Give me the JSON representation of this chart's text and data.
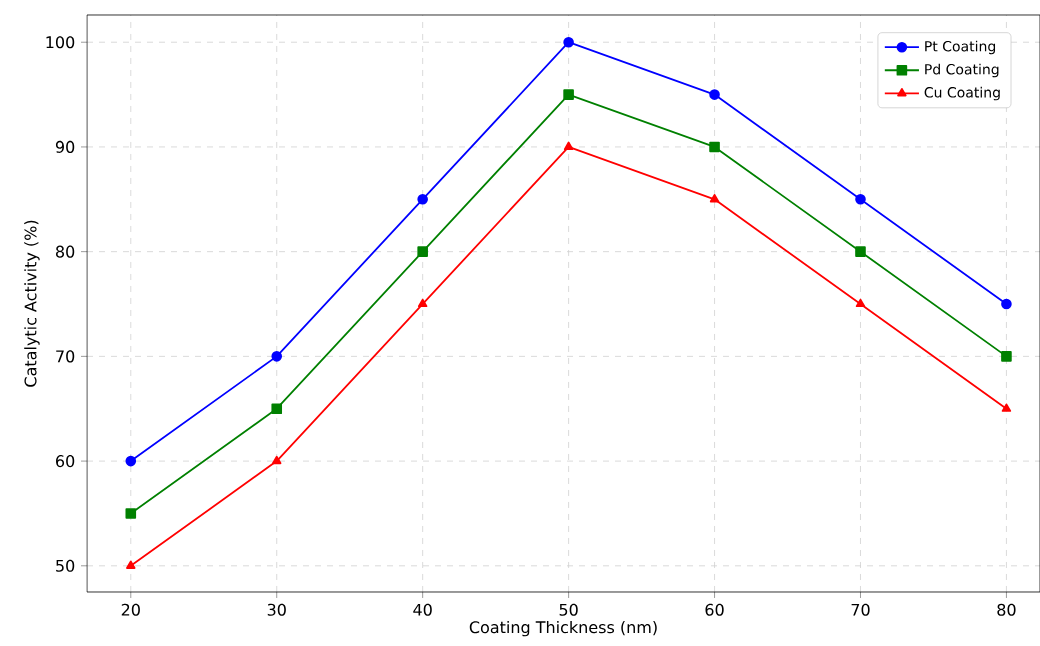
{
  "chart_data": {
    "type": "line",
    "xlabel": "Coating Thickness (nm)",
    "ylabel": "Catalytic Activity (%)",
    "x": [
      20,
      30,
      40,
      50,
      60,
      70,
      80
    ],
    "series": [
      {
        "name": "Pt Coating",
        "color": "#0000ff",
        "marker": "circle",
        "values": [
          60,
          70,
          85,
          100,
          95,
          85,
          75
        ]
      },
      {
        "name": "Pd Coating",
        "color": "#008000",
        "marker": "square",
        "values": [
          55,
          65,
          80,
          95,
          90,
          80,
          70
        ]
      },
      {
        "name": "Cu Coating",
        "color": "#ff0000",
        "marker": "triangle",
        "values": [
          50,
          60,
          75,
          90,
          85,
          75,
          65
        ]
      }
    ],
    "xlim": [
      17,
      82.3
    ],
    "ylim": [
      47.5,
      102.6
    ],
    "xticks": [
      20,
      30,
      40,
      50,
      60,
      70,
      80
    ],
    "yticks": [
      50,
      60,
      70,
      80,
      90,
      100
    ],
    "grid": true,
    "legend": "top right",
    "line_style": "solid"
  }
}
